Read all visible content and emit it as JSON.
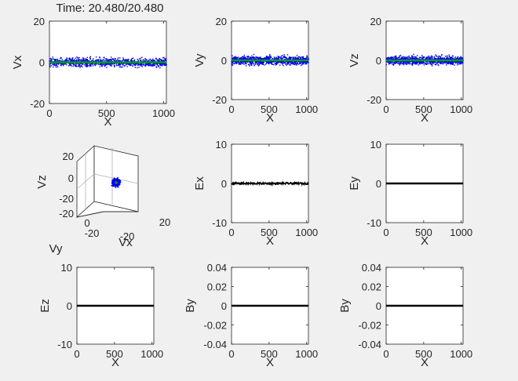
{
  "figure": {
    "title": "Time: 20.480/20.480",
    "background": "#f0f0f0",
    "colors": {
      "points": "#0000ee",
      "mean_line": "#00a000",
      "field_line": "#000000",
      "frame": "#262626"
    }
  },
  "chart_data": [
    {
      "id": "vx",
      "type": "scatter",
      "xlabel": "X",
      "ylabel": "Vx",
      "xlim": [
        0,
        1024
      ],
      "ylim": [
        -20,
        20
      ],
      "xticks": [
        "0",
        "500",
        "1000"
      ],
      "yticks": [
        "-20",
        "0",
        "20"
      ],
      "xtick_values": [
        0,
        500,
        1000
      ],
      "ytick_values": [
        -20,
        0,
        20
      ],
      "scatter": {
        "n_points": 1024,
        "spread": 1.5
      },
      "mean_line": 0
    },
    {
      "id": "vy",
      "type": "scatter",
      "xlabel": "X",
      "ylabel": "Vy",
      "xlim": [
        0,
        1024
      ],
      "ylim": [
        -20,
        20
      ],
      "xticks": [
        "0",
        "500",
        "1000"
      ],
      "yticks": [
        "-20",
        "0",
        "20"
      ],
      "xtick_values": [
        0,
        500,
        1000
      ],
      "ytick_values": [
        -20,
        0,
        20
      ],
      "scatter": {
        "n_points": 1024,
        "spread": 1.5
      },
      "mean_line": 0
    },
    {
      "id": "vz",
      "type": "scatter",
      "xlabel": "X",
      "ylabel": "Vz",
      "xlim": [
        0,
        1024
      ],
      "ylim": [
        -20,
        20
      ],
      "xticks": [
        "0",
        "500",
        "1000"
      ],
      "yticks": [
        "-20",
        "0",
        "20"
      ],
      "xtick_values": [
        0,
        500,
        1000
      ],
      "ytick_values": [
        -20,
        0,
        20
      ],
      "scatter": {
        "n_points": 1024,
        "spread": 1.5
      },
      "mean_line": 0
    },
    {
      "id": "v3d",
      "type": "scatter3d",
      "xlabel": "Vx",
      "ylabel": "Vy",
      "zlabel": "Vz",
      "xticks": [
        "-20",
        "20"
      ],
      "yticks": [
        "0",
        "-20"
      ],
      "zticks": [
        "20",
        "0",
        "-20",
        "-20"
      ],
      "scatter": {
        "n_points": 400,
        "spread": 1.5
      }
    },
    {
      "id": "ex",
      "type": "line",
      "xlabel": "X",
      "ylabel": "Ex",
      "xlim": [
        0,
        1024
      ],
      "ylim": [
        -10,
        10
      ],
      "xticks": [
        "0",
        "500",
        "1000"
      ],
      "yticks": [
        "-10",
        "0",
        "10"
      ],
      "xtick_values": [
        0,
        500,
        1000
      ],
      "ytick_values": [
        -10,
        0,
        10
      ],
      "noise": 0.25
    },
    {
      "id": "ey",
      "type": "line",
      "xlabel": "X",
      "ylabel": "Ey",
      "xlim": [
        0,
        1024
      ],
      "ylim": [
        -10,
        10
      ],
      "xticks": [
        "0",
        "500",
        "1000"
      ],
      "yticks": [
        "-10",
        "0",
        "10"
      ],
      "xtick_values": [
        0,
        500,
        1000
      ],
      "ytick_values": [
        -10,
        0,
        10
      ],
      "noise": 0
    },
    {
      "id": "ez",
      "type": "line",
      "xlabel": "X",
      "ylabel": "Ez",
      "xlim": [
        0,
        1024
      ],
      "ylim": [
        -10,
        10
      ],
      "xticks": [
        "0",
        "500",
        "1000"
      ],
      "yticks": [
        "-10",
        "0",
        "10"
      ],
      "xtick_values": [
        0,
        500,
        1000
      ],
      "ytick_values": [
        -10,
        0,
        10
      ],
      "noise": 0
    },
    {
      "id": "by1",
      "type": "line",
      "xlabel": "X",
      "ylabel": "By",
      "xlim": [
        0,
        1024
      ],
      "ylim": [
        -0.04,
        0.04
      ],
      "xticks": [
        "0",
        "500",
        "1000"
      ],
      "yticks": [
        "-0.04",
        "-0.02",
        "0",
        "0.02",
        "0.04"
      ],
      "xtick_values": [
        0,
        500,
        1000
      ],
      "ytick_values": [
        -0.04,
        -0.02,
        0,
        0.02,
        0.04
      ],
      "noise": 0
    },
    {
      "id": "by2",
      "type": "line",
      "xlabel": "X",
      "ylabel": "By",
      "xlim": [
        0,
        1024
      ],
      "ylim": [
        -0.04,
        0.04
      ],
      "xticks": [
        "0",
        "500",
        "1000"
      ],
      "yticks": [
        "-0.04",
        "-0.02",
        "0",
        "0.02",
        "0.04"
      ],
      "xtick_values": [
        0,
        500,
        1000
      ],
      "ytick_values": [
        -0.04,
        -0.02,
        0,
        0.02,
        0.04
      ],
      "noise": 0
    }
  ]
}
